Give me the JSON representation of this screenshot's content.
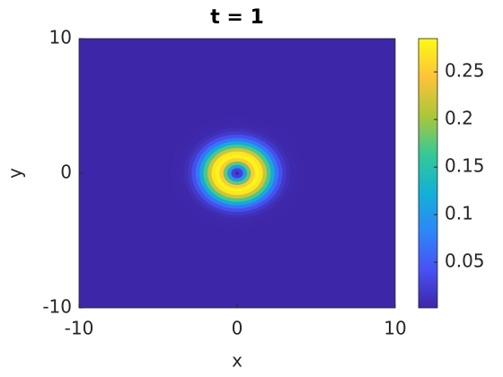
{
  "chart_data": {
    "type": "contour",
    "title": "t = 1",
    "xlabel": "x",
    "ylabel": "y",
    "xlim": [
      -10,
      10
    ],
    "ylim": [
      -10,
      10
    ],
    "xticks": [
      -10,
      0,
      10
    ],
    "yticks": [
      -10,
      0,
      10
    ],
    "center": [
      0,
      0
    ],
    "r": [
      0,
      0.25,
      0.5,
      0.75,
      1,
      1.25,
      1.5,
      1.75,
      2,
      2.25,
      2.5,
      2.75,
      3,
      3.25,
      3.5,
      4,
      4.5
    ],
    "values": [
      0,
      0.027,
      0.1,
      0.18,
      0.25,
      0.28,
      0.27,
      0.22,
      0.17,
      0.115,
      0.07,
      0.04,
      0.019,
      0.009,
      0.004,
      0.0025,
      0.002
    ],
    "clim": [
      0.002,
      0.285
    ],
    "cticks": [
      0.05,
      0.1,
      0.15,
      0.2,
      0.25
    ],
    "colormap": [
      "#3e26a8",
      "#4752f4",
      "#2d87f7",
      "#12b1d6",
      "#37c897",
      "#abc739",
      "#fec338",
      "#f9fb15"
    ]
  }
}
